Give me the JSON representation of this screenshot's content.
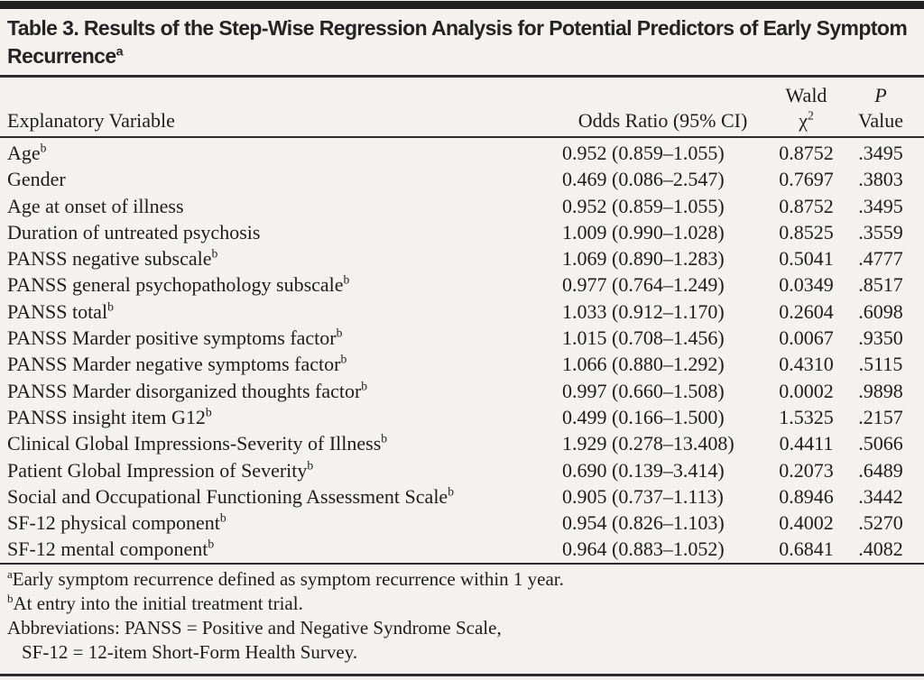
{
  "title": {
    "label": "Table 3. Results of the Step-Wise Regression Analysis for Potential Predictors of Early Symptom Recurrence",
    "superscript": "a"
  },
  "header": {
    "col_variable": "Explanatory Variable",
    "col_odds_ratio": "Odds Ratio (95% CI)",
    "col_wald_line1": "Wald",
    "col_wald_chi": "χ",
    "col_wald_chi_sup": "2",
    "col_p_line1": "P",
    "col_p_line2": "Value"
  },
  "table": {
    "rows": [
      {
        "label": "Age",
        "sup": "b",
        "or_ci": "0.952 (0.859–1.055)",
        "wald": "0.8752",
        "p": ".3495"
      },
      {
        "label": "Gender",
        "sup": "",
        "or_ci": "0.469 (0.086–2.547)",
        "wald": "0.7697",
        "p": ".3803"
      },
      {
        "label": "Age at onset of illness",
        "sup": "",
        "or_ci": "0.952 (0.859–1.055)",
        "wald": "0.8752",
        "p": ".3495"
      },
      {
        "label": "Duration of untreated psychosis",
        "sup": "",
        "or_ci": "1.009 (0.990–1.028)",
        "wald": "0.8525",
        "p": ".3559"
      },
      {
        "label": "PANSS negative subscale",
        "sup": "b",
        "or_ci": "1.069 (0.890–1.283)",
        "wald": "0.5041",
        "p": ".4777"
      },
      {
        "label": "PANSS general psychopathology subscale",
        "sup": "b",
        "or_ci": "0.977 (0.764–1.249)",
        "wald": "0.0349",
        "p": ".8517"
      },
      {
        "label": "PANSS total",
        "sup": "b",
        "or_ci": "1.033 (0.912–1.170)",
        "wald": "0.2604",
        "p": ".6098"
      },
      {
        "label": "PANSS Marder positive symptoms factor",
        "sup": "b",
        "or_ci": "1.015 (0.708–1.456)",
        "wald": "0.0067",
        "p": ".9350"
      },
      {
        "label": "PANSS Marder negative symptoms factor",
        "sup": "b",
        "or_ci": "1.066 (0.880–1.292)",
        "wald": "0.4310",
        "p": ".5115"
      },
      {
        "label": "PANSS Marder disorganized thoughts factor",
        "sup": "b",
        "or_ci": "0.997 (0.660–1.508)",
        "wald": "0.0002",
        "p": ".9898"
      },
      {
        "label": "PANSS insight item G12",
        "sup": "b",
        "or_ci": "0.499 (0.166–1.500)",
        "wald": "1.5325",
        "p": ".2157"
      },
      {
        "label": "Clinical Global Impressions-Severity of Illness",
        "sup": "b",
        "or_ci": "1.929 (0.278–13.408)",
        "wald": "0.4411",
        "p": ".5066"
      },
      {
        "label": "Patient Global Impression of Severity",
        "sup": "b",
        "or_ci": "0.690 (0.139–3.414)",
        "wald": "0.2073",
        "p": ".6489"
      },
      {
        "label": "Social and Occupational Functioning Assessment Scale",
        "sup": "b",
        "or_ci": "0.905 (0.737–1.113)",
        "wald": "0.8946",
        "p": ".3442"
      },
      {
        "label": "SF-12 physical component",
        "sup": "b",
        "or_ci": "0.954 (0.826–1.103)",
        "wald": "0.4002",
        "p": ".5270"
      },
      {
        "label": "SF-12 mental component",
        "sup": "b",
        "or_ci": "0.964 (0.883–1.052)",
        "wald": "0.6841",
        "p": ".4082"
      }
    ]
  },
  "footnotes": [
    {
      "sup": "a",
      "text": "Early symptom recurrence defined as symptom recurrence within 1 year.",
      "indent": false
    },
    {
      "sup": "b",
      "text": "At entry into the initial treatment trial.",
      "indent": false
    },
    {
      "sup": "",
      "text": "Abbreviations: PANSS = Positive and Negative Syndrome Scale,",
      "indent": false
    },
    {
      "sup": "",
      "text": "SF-12 = 12-item Short-Form Health Survey.",
      "indent": true
    }
  ],
  "colors": {
    "background": "#f3f2ee",
    "text": "#1d1d1d",
    "rule": "#2b2b2b",
    "top_bar": "#1f1f1f"
  }
}
